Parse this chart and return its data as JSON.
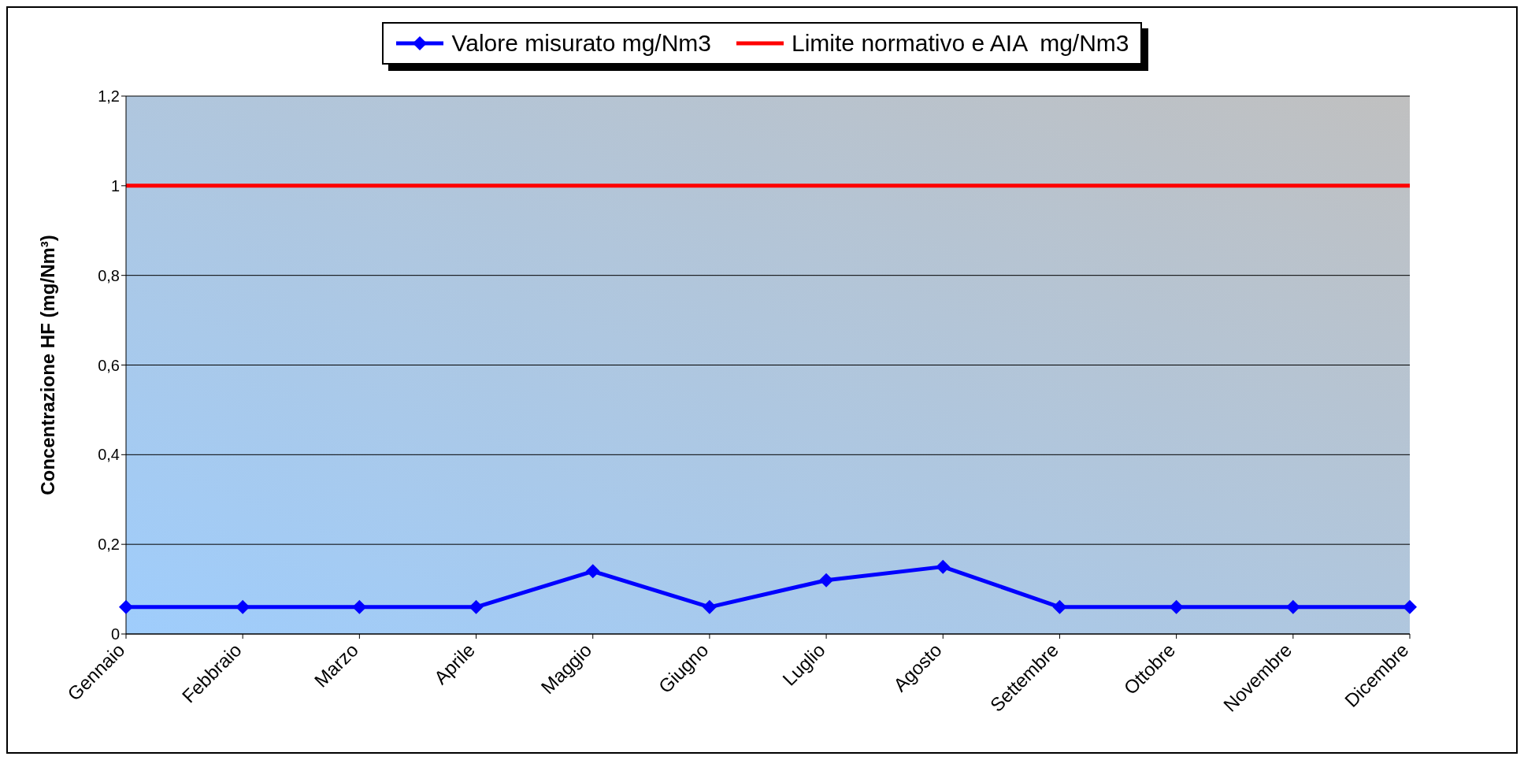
{
  "chart_data": {
    "type": "line",
    "ylabel": "Concentrazione HF (mg/Nm³)",
    "categories": [
      "Gennaio",
      "Febbraio",
      "Marzo",
      "Aprile",
      "Maggio",
      "Giugno",
      "Luglio",
      "Agosto",
      "Settembre",
      "Ottobre",
      "Novembre",
      "Dicembre"
    ],
    "series": [
      {
        "name": "Valore misurato mg/Nm3",
        "color": "#0000ff",
        "marker": "diamond",
        "values": [
          0.06,
          0.06,
          0.06,
          0.06,
          0.14,
          0.06,
          0.12,
          0.15,
          0.06,
          0.06,
          0.06,
          0.06
        ]
      },
      {
        "name": "Limite normativo e AIA  mg/Nm3",
        "color": "#ff0000",
        "marker": "none",
        "values": [
          1,
          1,
          1,
          1,
          1,
          1,
          1,
          1,
          1,
          1,
          1,
          1
        ]
      }
    ],
    "ylim": [
      0,
      1.2
    ],
    "yticks": [
      0,
      {
        "value": 0.2,
        "label": "0,2"
      },
      {
        "value": 0.4,
        "label": "0,4"
      },
      {
        "value": 0.6,
        "label": "0,6"
      },
      {
        "value": 0.8,
        "label": "0,8"
      },
      1,
      {
        "value": 1.2,
        "label": "1,2"
      }
    ],
    "grid": "y",
    "legend": "top",
    "line_style": "solid"
  }
}
